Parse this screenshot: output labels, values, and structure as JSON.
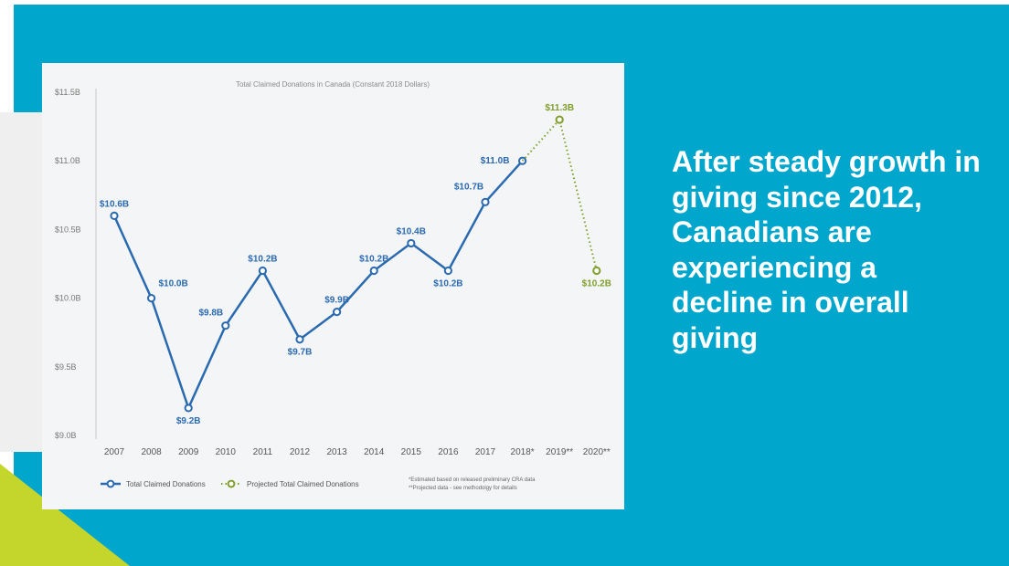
{
  "slide": {
    "headline": "After steady growth in giving since 2012, Canadians are experiencing a decline in overall giving",
    "colors": {
      "background": "#00a6cc",
      "accent": "#c4d52b"
    }
  },
  "chart_data": {
    "type": "line",
    "title": "Total Claimed Donations in Canada (Constant 2018 Dollars)",
    "xlabel": "",
    "ylabel": "",
    "categories": [
      "2007",
      "2008",
      "2009",
      "2010",
      "2011",
      "2012",
      "2013",
      "2014",
      "2015",
      "2016",
      "2017",
      "2018*",
      "2019**",
      "2020**"
    ],
    "y_ticks": [
      "$9.0B",
      "$9.5B",
      "$10.0B",
      "$10.5B",
      "$11.0B",
      "$11.5B"
    ],
    "y_tick_values": [
      9.0,
      9.5,
      10.0,
      10.5,
      11.0,
      11.5
    ],
    "ylim": [
      9.0,
      11.5
    ],
    "grid": false,
    "legend_position": "bottom-left",
    "series": [
      {
        "name": "Total Claimed Donations",
        "color": "#2a6ab0",
        "style": "solid",
        "values": [
          10.6,
          10.0,
          9.2,
          9.8,
          10.2,
          9.7,
          9.9,
          10.2,
          10.4,
          10.2,
          10.7,
          11.0,
          null,
          null
        ],
        "labels": [
          "$10.6B",
          "$10.0B",
          "$9.2B",
          "$9.8B",
          "$10.2B",
          "$9.7B",
          "$9.9B",
          "$10.2B",
          "$10.4B",
          "$10.2B",
          "$10.7B",
          "$11.0B",
          null,
          null
        ]
      },
      {
        "name": "Projected Total Claimed Donations",
        "color": "#7f9e2a",
        "style": "dotted",
        "values": [
          null,
          null,
          null,
          null,
          null,
          null,
          null,
          null,
          null,
          null,
          null,
          11.0,
          11.3,
          10.2
        ],
        "labels": [
          null,
          null,
          null,
          null,
          null,
          null,
          null,
          null,
          null,
          null,
          null,
          null,
          "$11.3B",
          "$10.2B"
        ]
      }
    ],
    "notes": [
      "*Estimated based on released preliminary CRA data",
      "**Projected data - see methodolgy for details"
    ]
  }
}
